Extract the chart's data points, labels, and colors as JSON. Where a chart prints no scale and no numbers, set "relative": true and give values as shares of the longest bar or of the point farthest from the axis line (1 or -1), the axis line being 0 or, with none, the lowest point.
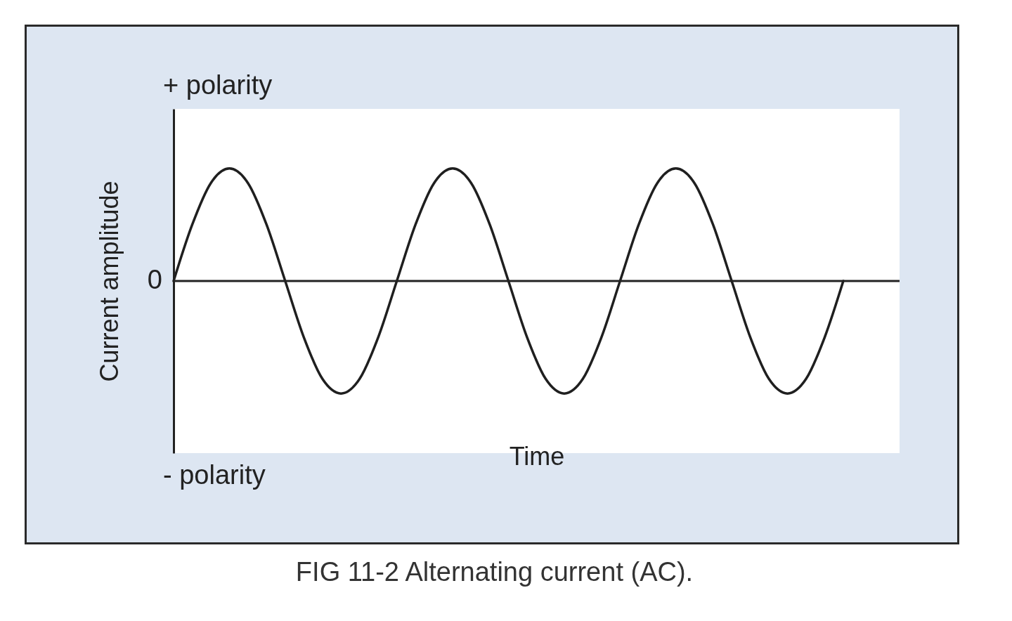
{
  "chart_data": {
    "type": "line",
    "title": "FIG 11-2 Alternating current (AC).",
    "xlabel": "Time",
    "ylabel": "Current amplitude",
    "relative": true,
    "color": "#1f1f1f",
    "categories": [
      null,
      null,
      null,
      null,
      null,
      null,
      null,
      null,
      null,
      null,
      null,
      null,
      null,
      null,
      null,
      null,
      null,
      null,
      null,
      null,
      null,
      null,
      null,
      null,
      null,
      null,
      null,
      null,
      null,
      null,
      null,
      null,
      null,
      null,
      null,
      null,
      null
    ],
    "values": [
      0,
      0.5,
      0.87,
      1,
      0.87,
      0.5,
      0,
      -0.5,
      -0.87,
      -1,
      -0.87,
      -0.5,
      0,
      0.5,
      0.87,
      1,
      0.87,
      0.5,
      0,
      -0.5,
      -0.87,
      -1,
      -0.87,
      -0.5,
      0,
      0.5,
      0.87,
      1,
      0.87,
      0.5,
      0,
      -0.5,
      -0.87,
      -1,
      -0.87,
      -0.5,
      0
    ],
    "annotations": [
      "+ polarity",
      "- polarity",
      "0"
    ]
  }
}
